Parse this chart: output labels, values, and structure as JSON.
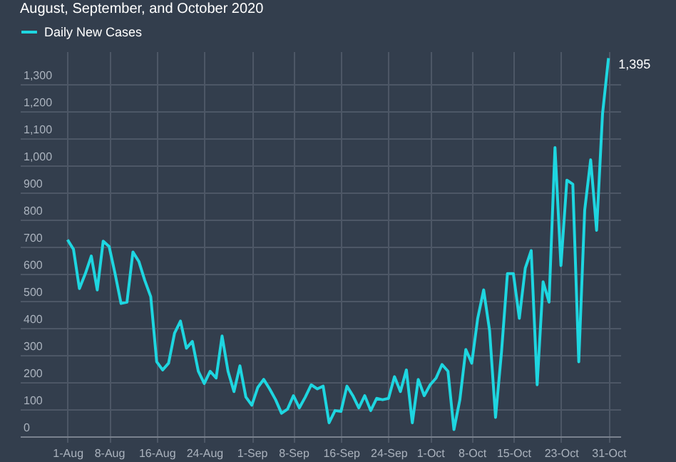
{
  "chart_data": {
    "type": "line",
    "title": "August, September, and October 2020",
    "x": [
      "--08-01",
      "--08-02",
      "--08-03",
      "--08-04",
      "--08-05",
      "--08-06",
      "--08-07",
      "--08-08",
      "--08-09",
      "--08-10",
      "--08-11",
      "--08-12",
      "--08-13",
      "--08-14",
      "--08-15",
      "--08-16",
      "--08-17",
      "--08-18",
      "--08-19",
      "--08-20",
      "--08-21",
      "--08-22",
      "--08-23",
      "--08-24",
      "--08-25",
      "--08-26",
      "--08-27",
      "--08-28",
      "--08-29",
      "--08-30",
      "--08-31",
      "--09-01",
      "--09-02",
      "--09-03",
      "--09-04",
      "--09-05",
      "--09-06",
      "--09-07",
      "--09-08",
      "--09-09",
      "--09-10",
      "--09-11",
      "--09-12",
      "--09-13",
      "--09-14",
      "--09-15",
      "--09-16",
      "--09-17",
      "--09-18",
      "--09-19",
      "--09-20",
      "--09-21",
      "--09-22",
      "--09-23",
      "--09-24",
      "--09-25",
      "--09-26",
      "--09-27",
      "--09-28",
      "--09-29",
      "--09-30",
      "--10-01",
      "--10-02",
      "--10-03",
      "--10-04",
      "--10-05",
      "--10-06",
      "--10-07",
      "--10-08",
      "--10-09",
      "--10-10",
      "--10-11",
      "--10-12",
      "--10-13",
      "--10-14",
      "--10-15",
      "--10-16",
      "--10-17",
      "--10-18",
      "--10-19",
      "--10-20",
      "--10-21",
      "--10-22",
      "--10-23",
      "--10-24",
      "--10-25",
      "--10-26",
      "--10-27",
      "--10-28",
      "--10-29",
      "--10-30",
      "--10-31"
    ],
    "series": [
      {
        "name": "Daily New Cases",
        "color": "#1ed6e0",
        "values": [
          725,
          690,
          545,
          600,
          665,
          540,
          720,
          700,
          600,
          490,
          495,
          680,
          645,
          575,
          515,
          275,
          245,
          270,
          380,
          425,
          325,
          350,
          240,
          195,
          240,
          215,
          370,
          240,
          165,
          260,
          145,
          115,
          180,
          210,
          175,
          135,
          85,
          100,
          150,
          105,
          145,
          190,
          175,
          185,
          50,
          95,
          92,
          185,
          150,
          105,
          150,
          95,
          140,
          135,
          140,
          220,
          165,
          245,
          50,
          210,
          150,
          190,
          215,
          265,
          240,
          25,
          135,
          320,
          270,
          435,
          540,
          390,
          70,
          310,
          600,
          600,
          435,
          620,
          685,
          190,
          570,
          495,
          1065,
          630,
          945,
          930,
          275,
          835,
          1020,
          760,
          1190,
          1395
        ],
        "value_labels": [
          null,
          null,
          null,
          null,
          null,
          null,
          null,
          null,
          null,
          null,
          null,
          null,
          null,
          null,
          null,
          null,
          null,
          null,
          null,
          null,
          null,
          null,
          null,
          null,
          null,
          null,
          null,
          null,
          null,
          null,
          null,
          null,
          null,
          null,
          null,
          null,
          null,
          null,
          null,
          null,
          null,
          null,
          null,
          null,
          null,
          null,
          null,
          null,
          null,
          null,
          null,
          null,
          null,
          null,
          null,
          null,
          null,
          null,
          null,
          null,
          null,
          null,
          null,
          null,
          null,
          null,
          null,
          null,
          null,
          null,
          null,
          null,
          null,
          null,
          null,
          null,
          null,
          null,
          null,
          null,
          null,
          null,
          null,
          null,
          null,
          null,
          null,
          null,
          null,
          null,
          null,
          "1,395"
        ]
      }
    ],
    "xlim": [
      "--07-24",
      "--11-02"
    ],
    "xticks": [
      {
        "value": "--08-01",
        "label": "1-Aug"
      },
      {
        "value": "--08-08",
        "label": "8-Aug"
      },
      {
        "value": "--08-16",
        "label": "16-Aug"
      },
      {
        "value": "--08-24",
        "label": "24-Aug"
      },
      {
        "value": "--09-01",
        "label": "1-Sep"
      },
      {
        "value": "--09-08",
        "label": "8-Sep"
      },
      {
        "value": "--09-16",
        "label": "16-Sep"
      },
      {
        "value": "--09-24",
        "label": "24-Sep"
      },
      {
        "value": "--10-01",
        "label": "1-Oct"
      },
      {
        "value": "--10-08",
        "label": "8-Oct"
      },
      {
        "value": "--10-15",
        "label": "15-Oct"
      },
      {
        "value": "--10-23",
        "label": "23-Oct"
      },
      {
        "value": "--10-31",
        "label": "31-Oct"
      }
    ],
    "ylim": [
      0,
      1420
    ],
    "yticks": [
      0,
      100,
      200,
      300,
      400,
      500,
      600,
      700,
      800,
      900,
      {
        "value": 1000,
        "label": "1,000"
      },
      {
        "value": 1100,
        "label": "1,100"
      },
      {
        "value": 1200,
        "label": "1,200"
      },
      {
        "value": 1300,
        "label": "1,300"
      }
    ],
    "grid": true,
    "legend": "top left",
    "marker": "none",
    "line_style": "solid"
  }
}
